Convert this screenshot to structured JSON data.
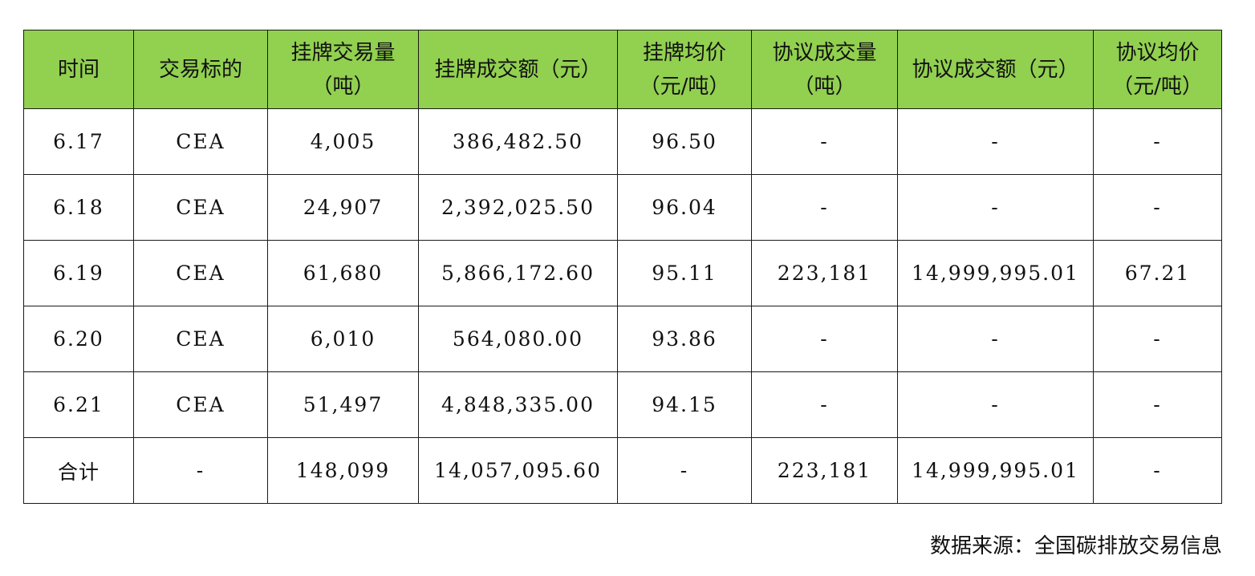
{
  "table": {
    "headers": [
      [
        "时间"
      ],
      [
        "交易标的"
      ],
      [
        "挂牌交易量",
        "（吨）"
      ],
      [
        "挂牌成交额（元）"
      ],
      [
        "挂牌均价",
        "（元/吨）"
      ],
      [
        "协议成交量",
        "（吨）"
      ],
      [
        "协议成交额（元）"
      ],
      [
        "协议均价",
        "（元/吨）"
      ]
    ],
    "rows": [
      [
        "6.17",
        "CEA",
        "4,005",
        "386,482.50",
        "96.50",
        "-",
        "-",
        "-"
      ],
      [
        "6.18",
        "CEA",
        "24,907",
        "2,392,025.50",
        "96.04",
        "-",
        "-",
        "-"
      ],
      [
        "6.19",
        "CEA",
        "61,680",
        "5,866,172.60",
        "95.11",
        "223,181",
        "14,999,995.01",
        "67.21"
      ],
      [
        "6.20",
        "CEA",
        "6,010",
        "564,080.00",
        "93.86",
        "-",
        "-",
        "-"
      ],
      [
        "6.21",
        "CEA",
        "51,497",
        "4,848,335.00",
        "94.15",
        "-",
        "-",
        "-"
      ],
      [
        "合计",
        "-",
        "148,099",
        "14,057,095.60",
        "-",
        "223,181",
        "14,999,995.01",
        "-"
      ]
    ]
  },
  "footer": {
    "source": "数据来源：全国碳排放交易信息"
  },
  "colors": {
    "header_bg": "#92d050",
    "border": "#1a1a1a"
  }
}
